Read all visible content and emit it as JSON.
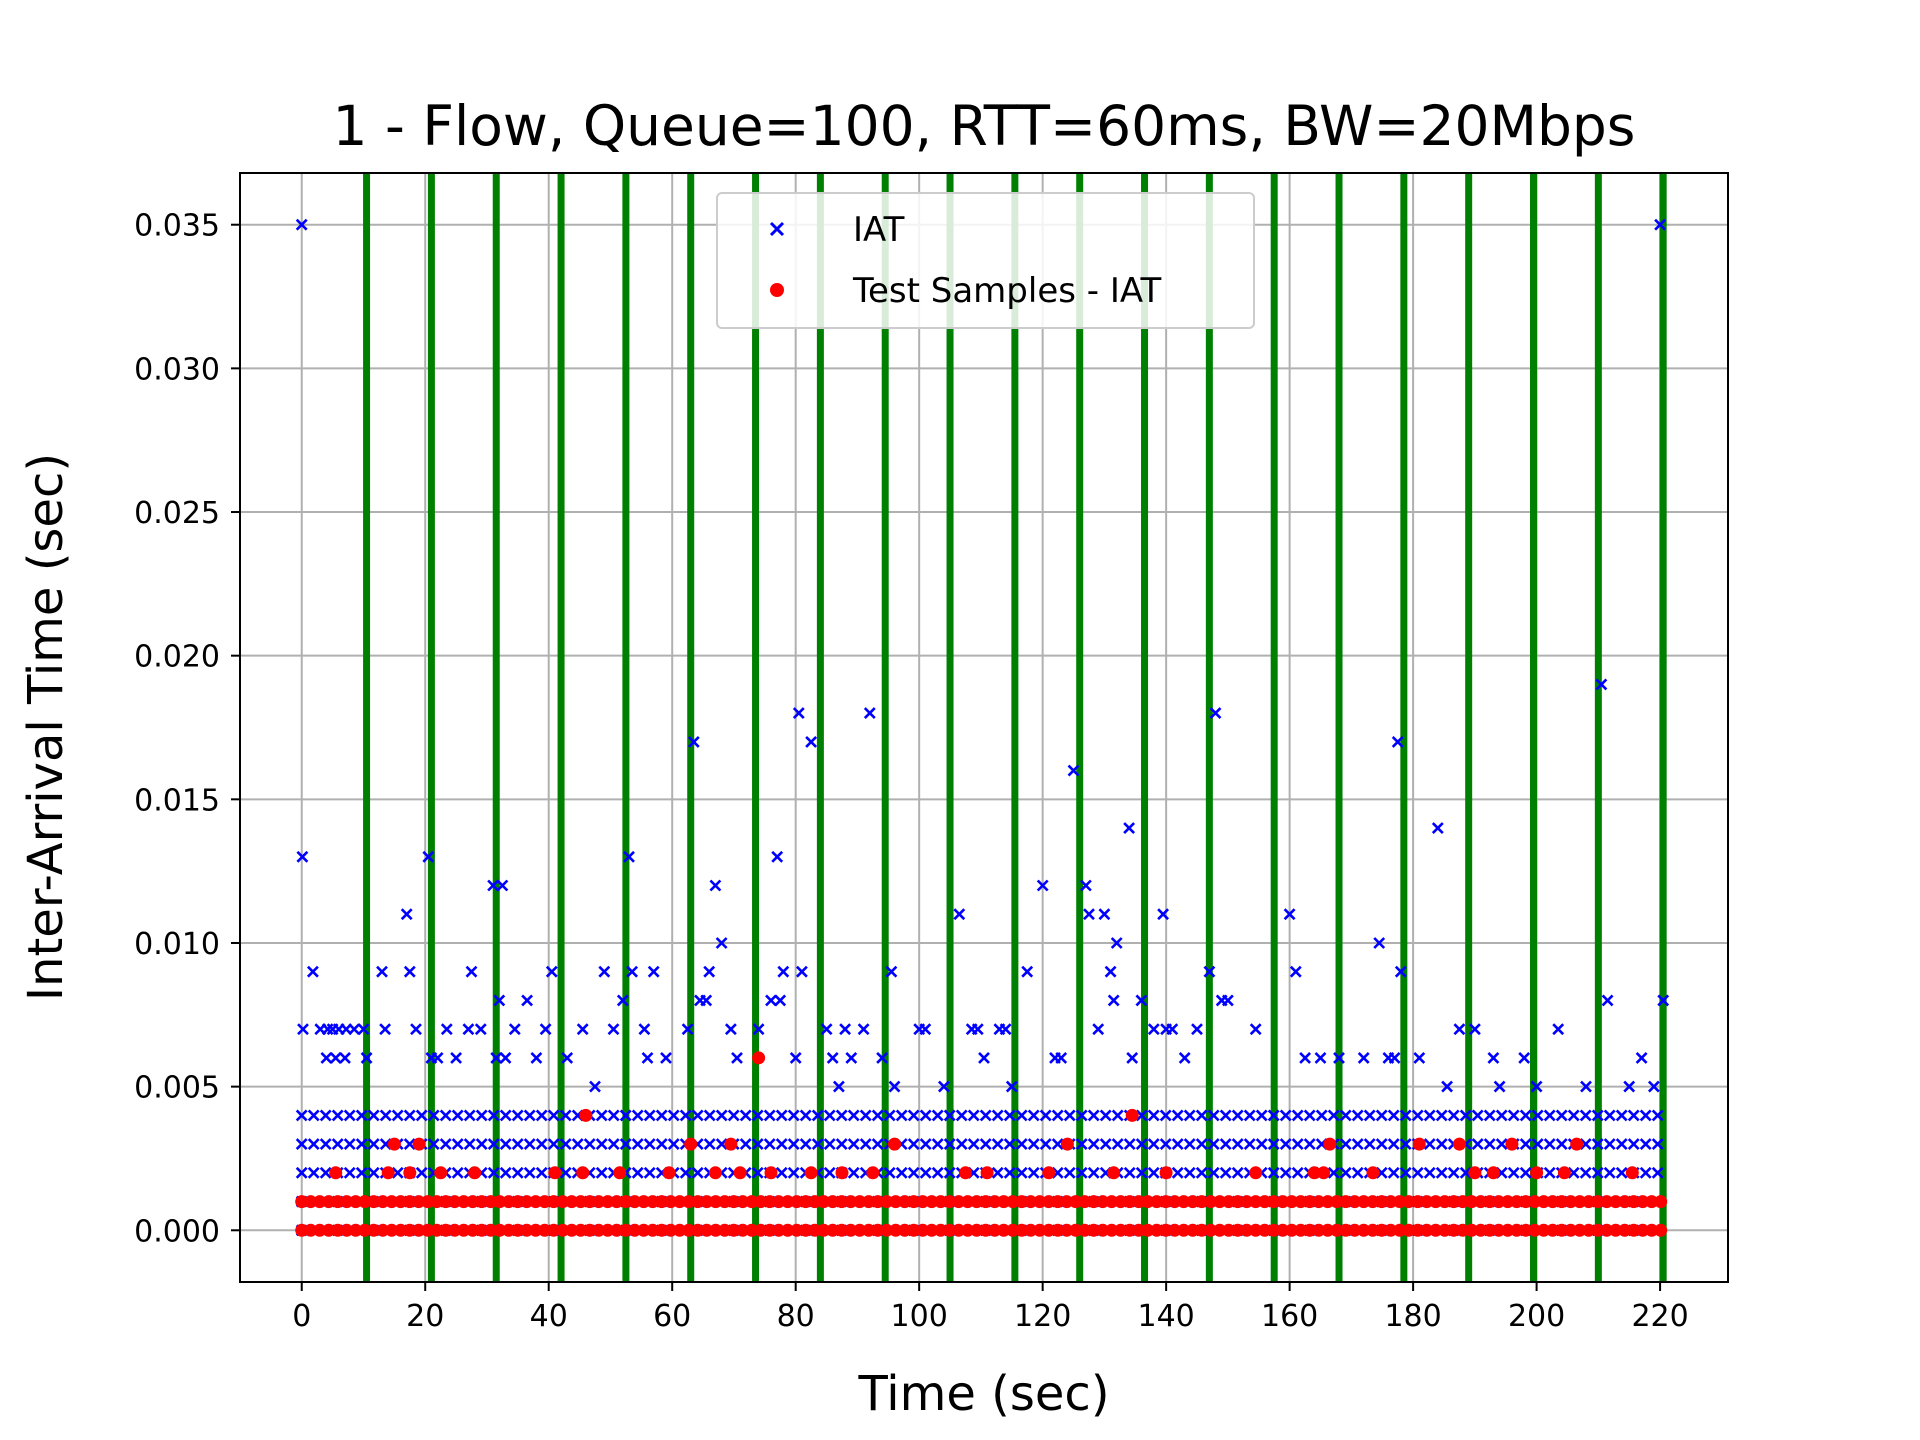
{
  "chart_data": {
    "type": "scatter",
    "title": "1 - Flow, Queue=100, RTT=60ms, BW=20Mbps",
    "xlabel": "Time (sec)",
    "ylabel": "Inter-Arrival Time (sec)",
    "xlim": [
      -10,
      231
    ],
    "ylim": [
      -0.0018,
      0.0368
    ],
    "xticks": [
      0,
      20,
      40,
      60,
      80,
      100,
      120,
      140,
      160,
      180,
      200,
      220
    ],
    "xtick_labels": [
      "0",
      "20",
      "40",
      "60",
      "80",
      "100",
      "120",
      "140",
      "160",
      "180",
      "200",
      "220"
    ],
    "yticks": [
      0.0,
      0.005,
      0.01,
      0.015,
      0.02,
      0.025,
      0.03,
      0.035
    ],
    "ytick_labels": [
      "0.000",
      "0.005",
      "0.010",
      "0.015",
      "0.020",
      "0.025",
      "0.030",
      "0.035"
    ],
    "grid": true,
    "legend_position": "upper-center",
    "vertical_lines": {
      "color": "#008000",
      "x": [
        10.5,
        21,
        31.5,
        42,
        52.5,
        63,
        73.5,
        84,
        94.5,
        105,
        115.5,
        126,
        136.5,
        147,
        157.5,
        168,
        178.5,
        189,
        199.5,
        210,
        220.5
      ]
    },
    "series": [
      {
        "name": "IAT",
        "marker": "x",
        "color": "#0000ff",
        "dense_bands": {
          "y": [
            0.0,
            0.001,
            0.002,
            0.003,
            0.004
          ],
          "x_range": [
            0,
            220.5
          ]
        },
        "points": [
          [
            0,
            0.035
          ],
          [
            0.1,
            0.013
          ],
          [
            1.8,
            0.009
          ],
          [
            0.2,
            0.007
          ],
          [
            3,
            0.007
          ],
          [
            4.2,
            0.007
          ],
          [
            5,
            0.007
          ],
          [
            6,
            0.007
          ],
          [
            7.2,
            0.007
          ],
          [
            8.5,
            0.007
          ],
          [
            4,
            0.006
          ],
          [
            5.5,
            0.006
          ],
          [
            7,
            0.006
          ],
          [
            10.5,
            0.006
          ],
          [
            10,
            0.007
          ],
          [
            13,
            0.009
          ],
          [
            13.5,
            0.007
          ],
          [
            17.5,
            0.009
          ],
          [
            17,
            0.011
          ],
          [
            18.5,
            0.007
          ],
          [
            20.5,
            0.013
          ],
          [
            21,
            0.006
          ],
          [
            22,
            0.006
          ],
          [
            23.5,
            0.007
          ],
          [
            25,
            0.006
          ],
          [
            27,
            0.007
          ],
          [
            27.5,
            0.009
          ],
          [
            29,
            0.007
          ],
          [
            31,
            0.012
          ],
          [
            32.5,
            0.012
          ],
          [
            32,
            0.008
          ],
          [
            31.5,
            0.006
          ],
          [
            33,
            0.006
          ],
          [
            34.5,
            0.007
          ],
          [
            36.5,
            0.008
          ],
          [
            38,
            0.006
          ],
          [
            39.5,
            0.007
          ],
          [
            40.5,
            0.009
          ],
          [
            43,
            0.006
          ],
          [
            45.5,
            0.007
          ],
          [
            47.5,
            0.005
          ],
          [
            49,
            0.009
          ],
          [
            50.5,
            0.007
          ],
          [
            52,
            0.008
          ],
          [
            53,
            0.013
          ],
          [
            53.5,
            0.009
          ],
          [
            55.5,
            0.007
          ],
          [
            57,
            0.009
          ],
          [
            56,
            0.006
          ],
          [
            59,
            0.006
          ],
          [
            63.5,
            0.017
          ],
          [
            62.5,
            0.007
          ],
          [
            64.5,
            0.008
          ],
          [
            65.5,
            0.008
          ],
          [
            66,
            0.009
          ],
          [
            67,
            0.012
          ],
          [
            68,
            0.01
          ],
          [
            69.5,
            0.007
          ],
          [
            70.5,
            0.006
          ],
          [
            74,
            0.007
          ],
          [
            76,
            0.008
          ],
          [
            77,
            0.013
          ],
          [
            77.5,
            0.008
          ],
          [
            78,
            0.009
          ],
          [
            80.5,
            0.018
          ],
          [
            81,
            0.009
          ],
          [
            82.5,
            0.017
          ],
          [
            80,
            0.006
          ],
          [
            85,
            0.007
          ],
          [
            86,
            0.006
          ],
          [
            87,
            0.005
          ],
          [
            88,
            0.007
          ],
          [
            89,
            0.006
          ],
          [
            91,
            0.007
          ],
          [
            92,
            0.018
          ],
          [
            94,
            0.006
          ],
          [
            95.5,
            0.009
          ],
          [
            96,
            0.005
          ],
          [
            100,
            0.007
          ],
          [
            101,
            0.007
          ],
          [
            104,
            0.005
          ],
          [
            106.5,
            0.011
          ],
          [
            108.5,
            0.007
          ],
          [
            109.5,
            0.007
          ],
          [
            110.5,
            0.006
          ],
          [
            113,
            0.007
          ],
          [
            114,
            0.007
          ],
          [
            115,
            0.005
          ],
          [
            117.5,
            0.009
          ],
          [
            120,
            0.012
          ],
          [
            122,
            0.006
          ],
          [
            123,
            0.006
          ],
          [
            125,
            0.016
          ],
          [
            127,
            0.012
          ],
          [
            127.5,
            0.011
          ],
          [
            129,
            0.007
          ],
          [
            130,
            0.011
          ],
          [
            131,
            0.009
          ],
          [
            131.5,
            0.008
          ],
          [
            132,
            0.01
          ],
          [
            134,
            0.014
          ],
          [
            134.5,
            0.006
          ],
          [
            136,
            0.008
          ],
          [
            138,
            0.007
          ],
          [
            139.5,
            0.011
          ],
          [
            140,
            0.007
          ],
          [
            141,
            0.007
          ],
          [
            143,
            0.006
          ],
          [
            145,
            0.007
          ],
          [
            147,
            0.009
          ],
          [
            148,
            0.018
          ],
          [
            149,
            0.008
          ],
          [
            150,
            0.008
          ],
          [
            154.5,
            0.007
          ],
          [
            160,
            0.011
          ],
          [
            161,
            0.009
          ],
          [
            162.5,
            0.006
          ],
          [
            165,
            0.006
          ],
          [
            168,
            0.006
          ],
          [
            172,
            0.006
          ],
          [
            174.5,
            0.01
          ],
          [
            176,
            0.006
          ],
          [
            177,
            0.006
          ],
          [
            177.5,
            0.017
          ],
          [
            178,
            0.009
          ],
          [
            181,
            0.006
          ],
          [
            184,
            0.014
          ],
          [
            185.5,
            0.005
          ],
          [
            187.5,
            0.007
          ],
          [
            190,
            0.007
          ],
          [
            193,
            0.006
          ],
          [
            194,
            0.005
          ],
          [
            198,
            0.006
          ],
          [
            200,
            0.005
          ],
          [
            203.5,
            0.007
          ],
          [
            208,
            0.005
          ],
          [
            210.5,
            0.019
          ],
          [
            211.5,
            0.008
          ],
          [
            215,
            0.005
          ],
          [
            217,
            0.006
          ],
          [
            220,
            0.035
          ],
          [
            220.5,
            0.008
          ],
          [
            219,
            0.005
          ]
        ]
      },
      {
        "name": "Test Samples - IAT",
        "marker": "o",
        "color": "#ff0000",
        "dense_bands": {
          "y": [
            0.0,
            0.001
          ],
          "x_range": [
            0,
            220.5
          ]
        },
        "points": [
          [
            74,
            0.006
          ],
          [
            46,
            0.004
          ],
          [
            134.5,
            0.004
          ],
          [
            15,
            0.003
          ],
          [
            19,
            0.003
          ],
          [
            63,
            0.003
          ],
          [
            69.5,
            0.003
          ],
          [
            96,
            0.003
          ],
          [
            124,
            0.003
          ],
          [
            166.5,
            0.003
          ],
          [
            181,
            0.003
          ],
          [
            187.5,
            0.003
          ],
          [
            196,
            0.003
          ],
          [
            206.5,
            0.003
          ],
          [
            5.5,
            0.002
          ],
          [
            14,
            0.002
          ],
          [
            17.5,
            0.002
          ],
          [
            22.5,
            0.002
          ],
          [
            28,
            0.002
          ],
          [
            41,
            0.002
          ],
          [
            45.5,
            0.002
          ],
          [
            51.5,
            0.002
          ],
          [
            59.5,
            0.002
          ],
          [
            67,
            0.002
          ],
          [
            71,
            0.002
          ],
          [
            76,
            0.002
          ],
          [
            82.5,
            0.002
          ],
          [
            87.5,
            0.002
          ],
          [
            92.5,
            0.002
          ],
          [
            107.5,
            0.002
          ],
          [
            111,
            0.002
          ],
          [
            121,
            0.002
          ],
          [
            131.5,
            0.002
          ],
          [
            140,
            0.002
          ],
          [
            154.5,
            0.002
          ],
          [
            164,
            0.002
          ],
          [
            165.5,
            0.002
          ],
          [
            173.5,
            0.002
          ],
          [
            190,
            0.002
          ],
          [
            193,
            0.002
          ],
          [
            200,
            0.002
          ],
          [
            204.5,
            0.002
          ],
          [
            215.5,
            0.002
          ]
        ]
      }
    ]
  }
}
